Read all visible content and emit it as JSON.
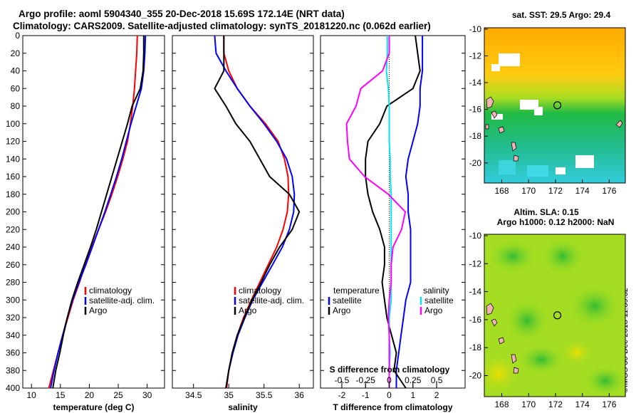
{
  "title": {
    "line1": "Argo profile: aoml 5904340_355 20-Dec-2018 15.69S 172.14E (NRT data)",
    "line2": "Climatology: CARS2009. Satellite-adjusted climatology: synTS_20181220.nc (0.062d earlier)"
  },
  "sst_title": "sat. SST: 29.5 Argo: 29.4",
  "sla_title_line1": "Altim. SLA: 0.15",
  "sla_title_line2": "Argo h1000: 0.12 h2000: NaN",
  "imos_stamp": "©IMOS 30-Dec-2018 11:39:32",
  "colors": {
    "climatology": "#ff0000",
    "satellite": "#0000ff",
    "argo": "#000000",
    "s_satellite": "#00e5ee",
    "s_argo": "#ff00ff"
  },
  "chart_data": [
    {
      "type": "line",
      "name": "temperature-profile",
      "xlabel": "temperature (deg C)",
      "ylabel": "",
      "xlim": [
        8.5,
        33
      ],
      "ylim": [
        400,
        0
      ],
      "xticks": [
        "10",
        "15",
        "20",
        "25",
        "30"
      ],
      "yticks": [
        "0",
        "20",
        "40",
        "60",
        "80",
        "100",
        "120",
        "140",
        "160",
        "180",
        "200",
        "220",
        "240",
        "260",
        "280",
        "300",
        "320",
        "340",
        "360",
        "380",
        "400"
      ],
      "legend": [
        "climatology",
        "satellite-adj. clim.",
        "Argo"
      ],
      "legend_position": "center-right",
      "series": [
        {
          "name": "climatology",
          "x": [
            28.3,
            28.2,
            28.0,
            27.8,
            27.5,
            27.1,
            26.6,
            25.8,
            24.9,
            23.9,
            22.8,
            21.6,
            20.4,
            19.3,
            18.3,
            17.2,
            16.3,
            15.4,
            14.6,
            13.8,
            13.0
          ],
          "y": [
            0,
            20,
            40,
            60,
            80,
            100,
            120,
            140,
            160,
            180,
            200,
            220,
            240,
            260,
            280,
            300,
            320,
            340,
            360,
            380,
            400
          ]
        },
        {
          "name": "satellite-adj. clim.",
          "x": [
            29.7,
            29.6,
            29.4,
            29.0,
            28.1,
            27.2,
            26.4,
            25.6,
            24.7,
            23.7,
            22.7,
            21.6,
            20.5,
            19.4,
            18.2,
            17.1,
            16.2,
            15.4,
            14.6,
            13.9,
            13.3
          ],
          "y": [
            0,
            20,
            40,
            60,
            80,
            100,
            120,
            140,
            160,
            180,
            200,
            220,
            240,
            260,
            280,
            300,
            320,
            340,
            360,
            380,
            400
          ]
        },
        {
          "name": "Argo",
          "x": [
            29.4,
            29.4,
            29.3,
            28.8,
            27.4,
            26.6,
            25.7,
            24.8,
            23.9,
            23.0,
            22.1,
            21.2,
            20.2,
            19.1,
            18.0,
            17.0,
            16.2,
            15.5,
            14.9,
            14.2,
            13.7
          ],
          "y": [
            0,
            20,
            40,
            60,
            80,
            100,
            120,
            140,
            160,
            180,
            200,
            220,
            240,
            260,
            280,
            300,
            320,
            340,
            360,
            380,
            400
          ]
        }
      ]
    },
    {
      "type": "line",
      "name": "salinity-profile",
      "xlabel": "salinity",
      "xlim": [
        34.2,
        36.2
      ],
      "ylim": [
        400,
        0
      ],
      "xticks": [
        "34.5",
        "35",
        "35.5",
        "36"
      ],
      "legend": [
        "climatology",
        "satellite-adj. clim.",
        "Argo"
      ],
      "legend_position": "center-right",
      "series": [
        {
          "name": "climatology",
          "x": [
            34.93,
            34.93,
            35.0,
            35.12,
            35.3,
            35.52,
            35.7,
            35.79,
            35.84,
            35.85,
            35.83,
            35.77,
            35.68,
            35.56,
            35.44,
            35.32,
            35.21,
            35.12,
            35.05,
            35.0,
            34.97
          ],
          "y": [
            0,
            20,
            40,
            60,
            80,
            100,
            120,
            140,
            160,
            180,
            200,
            220,
            240,
            260,
            280,
            300,
            320,
            340,
            360,
            380,
            400
          ]
        },
        {
          "name": "satellite-adj. clim.",
          "x": [
            34.8,
            34.82,
            34.96,
            35.12,
            35.3,
            35.5,
            35.68,
            35.82,
            35.9,
            35.93,
            35.92,
            35.86,
            35.76,
            35.62,
            35.48,
            35.34,
            35.23,
            35.13,
            35.06,
            35.0,
            34.96
          ],
          "y": [
            0,
            20,
            40,
            60,
            80,
            100,
            120,
            140,
            160,
            180,
            200,
            220,
            240,
            260,
            280,
            300,
            320,
            340,
            360,
            380,
            400
          ]
        },
        {
          "name": "Argo",
          "x": [
            34.93,
            34.93,
            34.93,
            34.8,
            34.96,
            35.1,
            35.3,
            35.44,
            35.58,
            35.86,
            36.0,
            35.9,
            35.72,
            35.58,
            35.46,
            35.33,
            35.22,
            35.12,
            35.05,
            35.0,
            34.96
          ],
          "y": [
            0,
            20,
            40,
            60,
            80,
            100,
            120,
            140,
            160,
            180,
            200,
            220,
            240,
            260,
            280,
            300,
            320,
            340,
            360,
            380,
            400
          ]
        }
      ]
    },
    {
      "type": "line",
      "name": "difference-profile",
      "xlabel": "T difference from climatology",
      "top_axis_label": "S difference from climatology",
      "xlim": [
        -2.9,
        3.2
      ],
      "ylim": [
        400,
        0
      ],
      "xticks": [
        "-2",
        "-1",
        "0",
        "1",
        "2"
      ],
      "top_xticks": [
        "-0.5",
        "-0.25",
        "0",
        "0.25",
        "0.5"
      ],
      "legend_temperature": {
        "title": "temperature",
        "items": [
          "satellite",
          "Argo"
        ]
      },
      "legend_salinity": {
        "title": "salinity",
        "items": [
          "satellite",
          "Argo"
        ]
      },
      "series": [
        {
          "name": "T satellite",
          "x": [
            1.4,
            1.4,
            1.4,
            1.3,
            1.3,
            1.2,
            1.0,
            0.8,
            0.7,
            0.8,
            0.8,
            0.9,
            0.9,
            0.9,
            0.9,
            0.7,
            0.6,
            0.5,
            0.4,
            0.3,
            0.3
          ],
          "y": [
            0,
            20,
            40,
            60,
            80,
            100,
            120,
            140,
            160,
            180,
            200,
            220,
            240,
            260,
            280,
            300,
            320,
            340,
            360,
            380,
            400
          ]
        },
        {
          "name": "T Argo",
          "x": [
            1.1,
            1.2,
            1.3,
            1.0,
            -0.1,
            -0.4,
            -0.9,
            -1.0,
            -1.0,
            -0.9,
            -0.7,
            -0.4,
            -0.2,
            -0.2,
            -0.3,
            -0.2,
            -0.1,
            0.1,
            0.3,
            0.2,
            0.7
          ],
          "y": [
            0,
            20,
            40,
            60,
            80,
            100,
            120,
            140,
            160,
            180,
            200,
            220,
            240,
            260,
            280,
            300,
            320,
            340,
            360,
            380,
            400
          ]
        },
        {
          "name": "S satellite",
          "x": [
            -0.02,
            -0.02,
            -0.03,
            -0.01,
            0.0,
            0.0,
            0.0,
            0.01,
            0.01,
            0.02,
            0.02,
            0.02,
            0.02,
            0.02,
            0.02,
            0.02,
            0.0,
            0.0,
            0.01,
            0.0,
            0.0
          ],
          "y": [
            0,
            20,
            40,
            60,
            80,
            100,
            120,
            140,
            160,
            180,
            200,
            220,
            240,
            260,
            280,
            300,
            320,
            340,
            360,
            380,
            400
          ]
        },
        {
          "name": "S Argo",
          "x": [
            0.0,
            0.0,
            -0.07,
            -0.3,
            -0.35,
            -0.45,
            -0.44,
            -0.42,
            -0.26,
            -0.01,
            0.17,
            0.13,
            0.04,
            0.02,
            0.02,
            0.0,
            -0.01,
            0.0,
            0.0,
            0.0,
            0.0
          ],
          "y": [
            0,
            20,
            40,
            60,
            80,
            100,
            120,
            140,
            160,
            180,
            200,
            220,
            240,
            260,
            280,
            300,
            320,
            340,
            360,
            380,
            400
          ]
        }
      ]
    },
    {
      "type": "heatmap",
      "name": "sst-map",
      "xlim": [
        166.7,
        177.2
      ],
      "ylim": [
        -21.5,
        -9.9
      ],
      "xticks": [
        "168",
        "170",
        "172",
        "174",
        "176"
      ],
      "yticks": [
        "-10",
        "-12",
        "-14",
        "-16",
        "-18",
        "-20"
      ],
      "argo_position": {
        "lon": 172.14,
        "lat": -15.69
      }
    },
    {
      "type": "heatmap",
      "name": "sla-map",
      "xlim": [
        166.7,
        177.2
      ],
      "ylim": [
        -21.5,
        -9.9
      ],
      "xticks": [
        "168",
        "170",
        "172",
        "174",
        "176"
      ],
      "yticks": [
        "-10",
        "-12",
        "-14",
        "-16",
        "-18",
        "-20"
      ],
      "argo_position": {
        "lon": 172.14,
        "lat": -15.69
      }
    }
  ]
}
